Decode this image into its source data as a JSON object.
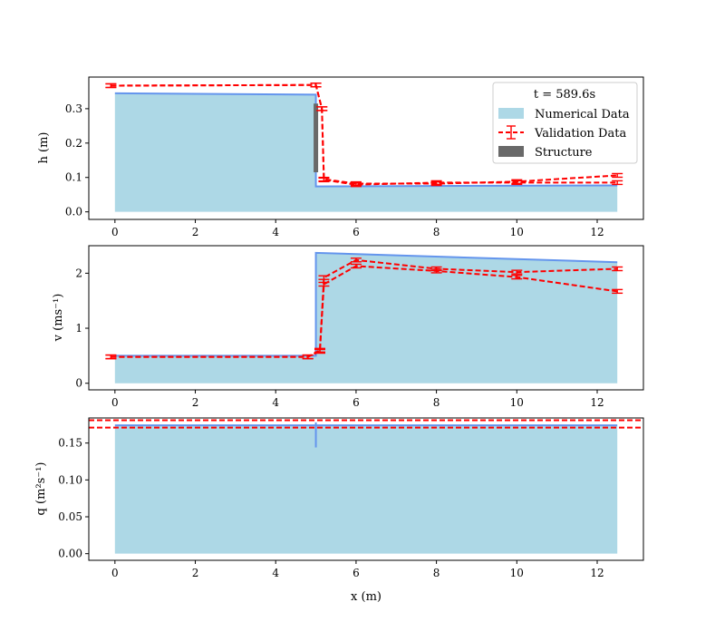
{
  "chart_data": [
    {
      "type": "area",
      "ylabel": "h (m)",
      "xlim": [
        -0.65,
        13.15
      ],
      "ylim": [
        -0.022,
        0.392
      ],
      "xticks": [
        0,
        2,
        4,
        6,
        8,
        10,
        12
      ],
      "yticks": [
        0.0,
        0.1,
        0.2,
        0.3
      ],
      "ytick_labels": [
        "0.0",
        "0.1",
        "0.2",
        "0.3"
      ],
      "numerical": {
        "x": [
          0,
          5,
          5.0001,
          12.5
        ],
        "y": [
          0.345,
          0.341,
          0.074,
          0.077
        ]
      },
      "structure": {
        "x": 5.0,
        "y0": 0.115,
        "y1": 0.315
      },
      "validation": [
        {
          "x": [
            -0.1,
            5.0,
            5.15,
            5.2,
            6.0,
            8.0,
            10.0,
            12.5
          ],
          "y": [
            0.367,
            0.369,
            0.3,
            0.095,
            0.082,
            0.082,
            0.088,
            0.106
          ]
        },
        {
          "x": [
            -0.1,
            5.0,
            5.15,
            5.2,
            6.0,
            8.0,
            10.0,
            12.5
          ],
          "y": [
            0.367,
            0.369,
            0.3,
            0.093,
            0.079,
            0.085,
            0.085,
            0.085
          ]
        }
      ],
      "legend": {
        "title": "t = 589.6s",
        "entries": [
          "Numerical Data",
          "Validation Data",
          "Structure"
        ],
        "placement": "top-right"
      }
    },
    {
      "type": "area",
      "ylabel": "v (ms⁻¹)",
      "xlim": [
        -0.65,
        13.15
      ],
      "ylim": [
        -0.12,
        2.5
      ],
      "xticks": [
        0,
        2,
        4,
        6,
        8,
        10,
        12
      ],
      "yticks": [
        0,
        1,
        2
      ],
      "ytick_labels": [
        "0",
        "1",
        "2"
      ],
      "numerical": {
        "x": [
          0,
          5,
          5.0001,
          12.5
        ],
        "y": [
          0.5,
          0.5,
          2.37,
          2.2
        ]
      },
      "validation": [
        {
          "x": [
            -0.1,
            4.8,
            5.1,
            5.2,
            6.0,
            8.0,
            10.0,
            12.5
          ],
          "y": [
            0.48,
            0.48,
            0.58,
            1.92,
            2.24,
            2.08,
            2.02,
            2.08
          ]
        },
        {
          "x": [
            -0.1,
            4.8,
            5.1,
            5.2,
            6.0,
            8.0,
            10.0,
            12.5
          ],
          "y": [
            0.48,
            0.48,
            0.6,
            1.8,
            2.13,
            2.04,
            1.93,
            1.67
          ]
        }
      ]
    },
    {
      "type": "area",
      "ylabel": "q (m²s⁻¹)",
      "xlabel": "x (m)",
      "xlim": [
        -0.65,
        13.15
      ],
      "ylim": [
        -0.009,
        0.184
      ],
      "xticks": [
        0,
        2,
        4,
        6,
        8,
        10,
        12
      ],
      "yticks": [
        0.0,
        0.05,
        0.1,
        0.15
      ],
      "ytick_labels": [
        "0.00",
        "0.05",
        "0.10",
        "0.15"
      ],
      "numerical": {
        "x": [
          0,
          12.5
        ],
        "y": [
          0.174,
          0.174
        ]
      },
      "spike": {
        "x": 5.0,
        "y0": 0.144,
        "y1": 0.178
      },
      "validation": [
        {
          "x": [
            -0.65,
            13.15
          ],
          "y": [
            0.181,
            0.181
          ]
        },
        {
          "x": [
            -0.65,
            13.15
          ],
          "y": [
            0.171,
            0.171
          ]
        }
      ]
    }
  ],
  "colors": {
    "fill": "#add8e6",
    "numerical_line": "#6495ed",
    "validation": "#ff0000",
    "structure": "#696969"
  }
}
